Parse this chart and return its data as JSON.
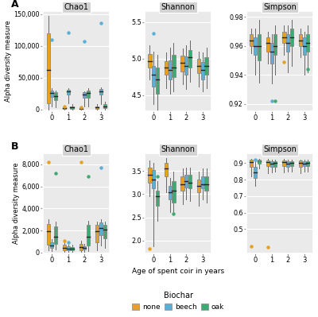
{
  "colors": {
    "none": "#E8A020",
    "beech": "#5BAFD6",
    "oak": "#3DAA72"
  },
  "panel_A": {
    "Chao1": {
      "none": {
        "0": {
          "q1": 10000,
          "median": 62000,
          "q3": 120000,
          "whislo": 0,
          "whishi": 148000,
          "fliers": []
        },
        "1": {
          "q1": 500,
          "median": 2000,
          "q3": 4000,
          "whislo": 0,
          "whishi": 5000,
          "fliers": [
            4500
          ]
        },
        "2": {
          "q1": 500,
          "median": 1500,
          "q3": 3500,
          "whislo": 0,
          "whishi": 5000,
          "fliers": [
            3000
          ]
        },
        "3": {
          "q1": 1000,
          "median": 3000,
          "q3": 5000,
          "whislo": 0,
          "whishi": 8000,
          "fliers": []
        }
      },
      "beech": {
        "0": {
          "q1": 20000,
          "median": 26000,
          "q3": 30000,
          "whislo": 5000,
          "whishi": 33000,
          "fliers": [
            110000
          ]
        },
        "1": {
          "q1": 24000,
          "median": 29000,
          "q3": 31000,
          "whislo": 10000,
          "whishi": 33000,
          "fliers": [
            121000
          ]
        },
        "2": {
          "q1": 19000,
          "median": 24000,
          "q3": 27000,
          "whislo": 5000,
          "whishi": 29000,
          "fliers": [
            107000
          ]
        },
        "3": {
          "q1": 23000,
          "median": 29000,
          "q3": 32000,
          "whislo": 8000,
          "whishi": 35000,
          "fliers": [
            136000
          ]
        }
      },
      "oak": {
        "0": {
          "q1": 15000,
          "median": 21000,
          "q3": 27000,
          "whislo": 3000,
          "whishi": 30000,
          "fliers": []
        },
        "1": {
          "q1": 1000,
          "median": 3000,
          "q3": 5000,
          "whislo": 0,
          "whishi": 8000,
          "fliers": []
        },
        "2": {
          "q1": 19000,
          "median": 26000,
          "q3": 30000,
          "whislo": 5000,
          "whishi": 33000,
          "fliers": []
        },
        "3": {
          "q1": 2000,
          "median": 5000,
          "q3": 8000,
          "whislo": 0,
          "whishi": 12000,
          "fliers": []
        }
      }
    },
    "Shannon": {
      "none": {
        "0": {
          "q1": 4.88,
          "median": 4.97,
          "q3": 5.06,
          "whislo": 4.72,
          "whishi": 5.18,
          "fliers": []
        },
        "1": {
          "q1": 4.78,
          "median": 4.88,
          "q3": 4.97,
          "whislo": 4.6,
          "whishi": 5.08,
          "fliers": []
        },
        "2": {
          "q1": 4.82,
          "median": 4.94,
          "q3": 5.04,
          "whislo": 4.65,
          "whishi": 5.14,
          "fliers": []
        },
        "3": {
          "q1": 4.8,
          "median": 4.9,
          "q3": 5.0,
          "whislo": 4.62,
          "whishi": 5.1,
          "fliers": []
        }
      },
      "beech": {
        "0": {
          "q1": 4.62,
          "median": 4.78,
          "q3": 4.9,
          "whislo": 4.38,
          "whishi": 5.1,
          "fliers": [
            5.35
          ]
        },
        "1": {
          "q1": 4.72,
          "median": 4.85,
          "q3": 4.98,
          "whislo": 4.52,
          "whishi": 5.15,
          "fliers": []
        },
        "2": {
          "q1": 4.78,
          "median": 4.9,
          "q3": 5.03,
          "whislo": 4.58,
          "whishi": 5.18,
          "fliers": []
        },
        "3": {
          "q1": 4.72,
          "median": 4.85,
          "q3": 4.95,
          "whislo": 4.55,
          "whishi": 5.08,
          "fliers": []
        }
      },
      "oak": {
        "0": {
          "q1": 4.52,
          "median": 4.72,
          "q3": 4.88,
          "whislo": 4.28,
          "whishi": 5.05,
          "fliers": []
        },
        "1": {
          "q1": 4.75,
          "median": 4.88,
          "q3": 5.05,
          "whislo": 4.55,
          "whishi": 5.22,
          "fliers": []
        },
        "2": {
          "q1": 4.88,
          "median": 5.02,
          "q3": 5.12,
          "whislo": 4.68,
          "whishi": 5.25,
          "fliers": []
        },
        "3": {
          "q1": 4.78,
          "median": 4.9,
          "q3": 5.02,
          "whislo": 4.6,
          "whishi": 5.15,
          "fliers": []
        }
      }
    },
    "Simpson": {
      "none": {
        "0": {
          "q1": 0.96,
          "median": 0.964,
          "q3": 0.968,
          "whislo": 0.955,
          "whishi": 0.972,
          "fliers": []
        },
        "1": {
          "q1": 0.956,
          "median": 0.962,
          "q3": 0.966,
          "whislo": 0.948,
          "whishi": 0.97,
          "fliers": []
        },
        "2": {
          "q1": 0.962,
          "median": 0.966,
          "q3": 0.97,
          "whislo": 0.954,
          "whishi": 0.974,
          "fliers": [
            0.949
          ]
        },
        "3": {
          "q1": 0.96,
          "median": 0.964,
          "q3": 0.968,
          "whislo": 0.952,
          "whishi": 0.972,
          "fliers": []
        }
      },
      "beech": {
        "0": {
          "q1": 0.954,
          "median": 0.96,
          "q3": 0.966,
          "whislo": 0.94,
          "whishi": 0.972,
          "fliers": []
        },
        "1": {
          "q1": 0.948,
          "median": 0.956,
          "q3": 0.962,
          "whislo": 0.934,
          "whishi": 0.968,
          "fliers": [
            0.922
          ]
        },
        "2": {
          "q1": 0.956,
          "median": 0.962,
          "q3": 0.968,
          "whislo": 0.942,
          "whishi": 0.974,
          "fliers": []
        },
        "3": {
          "q1": 0.954,
          "median": 0.96,
          "q3": 0.966,
          "whislo": 0.94,
          "whishi": 0.97,
          "fliers": []
        }
      },
      "oak": {
        "0": {
          "q1": 0.95,
          "median": 0.96,
          "q3": 0.968,
          "whislo": 0.935,
          "whishi": 0.978,
          "fliers": []
        },
        "1": {
          "q1": 0.954,
          "median": 0.96,
          "q3": 0.968,
          "whislo": 0.94,
          "whishi": 0.974,
          "fliers": [
            0.922
          ]
        },
        "2": {
          "q1": 0.96,
          "median": 0.966,
          "q3": 0.972,
          "whislo": 0.946,
          "whishi": 0.978,
          "fliers": []
        },
        "3": {
          "q1": 0.956,
          "median": 0.962,
          "q3": 0.968,
          "whislo": 0.942,
          "whishi": 0.974,
          "fliers": [
            0.944
          ]
        }
      }
    }
  },
  "panel_B": {
    "Chao1": {
      "none": {
        "0": {
          "q1": 700,
          "median": 1900,
          "q3": 2600,
          "whislo": 200,
          "whishi": 3000,
          "fliers": [
            8200
          ]
        },
        "1": {
          "q1": 200,
          "median": 400,
          "q3": 700,
          "whislo": 80,
          "whishi": 1000,
          "fliers": [
            1050
          ]
        },
        "2": {
          "q1": 200,
          "median": 500,
          "q3": 800,
          "whislo": 80,
          "whishi": 1100,
          "fliers": [
            8200
          ]
        },
        "3": {
          "q1": 900,
          "median": 1900,
          "q3": 2500,
          "whislo": 200,
          "whishi": 2800,
          "fliers": []
        }
      },
      "beech": {
        "0": {
          "q1": 400,
          "median": 600,
          "q3": 900,
          "whislo": 150,
          "whishi": 1200,
          "fliers": []
        },
        "1": {
          "q1": 200,
          "median": 380,
          "q3": 550,
          "whislo": 80,
          "whishi": 700,
          "fliers": [
            900
          ]
        },
        "2": {
          "q1": 250,
          "median": 400,
          "q3": 580,
          "whislo": 80,
          "whishi": 750,
          "fliers": []
        },
        "3": {
          "q1": 1600,
          "median": 2200,
          "q3": 2700,
          "whislo": 600,
          "whishi": 3000,
          "fliers": [
            7700
          ]
        }
      },
      "oak": {
        "0": {
          "q1": 800,
          "median": 1400,
          "q3": 2400,
          "whislo": 250,
          "whishi": 2800,
          "fliers": [
            7200
          ]
        },
        "1": {
          "q1": 200,
          "median": 350,
          "q3": 500,
          "whislo": 60,
          "whishi": 700,
          "fliers": []
        },
        "2": {
          "q1": 600,
          "median": 1400,
          "q3": 2500,
          "whislo": 150,
          "whishi": 2900,
          "fliers": [
            6900
          ]
        },
        "3": {
          "q1": 1300,
          "median": 2100,
          "q3": 2500,
          "whislo": 400,
          "whishi": 2800,
          "fliers": []
        }
      }
    },
    "Shannon": {
      "none": {
        "0": {
          "q1": 3.25,
          "median": 3.42,
          "q3": 3.58,
          "whislo": 2.95,
          "whishi": 3.72,
          "fliers": [
            1.82
          ]
        },
        "1": {
          "q1": 3.38,
          "median": 3.55,
          "q3": 3.68,
          "whislo": 3.05,
          "whishi": 3.78,
          "fliers": []
        },
        "2": {
          "q1": 3.08,
          "median": 3.22,
          "q3": 3.38,
          "whislo": 2.78,
          "whishi": 3.55,
          "fliers": []
        },
        "3": {
          "q1": 3.05,
          "median": 3.18,
          "q3": 3.32,
          "whislo": 2.75,
          "whishi": 3.48,
          "fliers": []
        }
      },
      "beech": {
        "0": {
          "q1": 3.12,
          "median": 3.32,
          "q3": 3.52,
          "whislo": 1.88,
          "whishi": 3.68,
          "fliers": []
        },
        "1": {
          "q1": 2.88,
          "median": 3.05,
          "q3": 3.18,
          "whislo": 2.62,
          "whishi": 3.35,
          "fliers": []
        },
        "2": {
          "q1": 3.15,
          "median": 3.28,
          "q3": 3.42,
          "whislo": 2.88,
          "whishi": 3.58,
          "fliers": []
        },
        "3": {
          "q1": 3.12,
          "median": 3.22,
          "q3": 3.38,
          "whislo": 2.88,
          "whishi": 3.55,
          "fliers": []
        }
      },
      "oak": {
        "0": {
          "q1": 2.75,
          "median": 2.95,
          "q3": 3.08,
          "whislo": 2.42,
          "whishi": 3.28,
          "fliers": [
            3.38
          ]
        },
        "1": {
          "q1": 2.82,
          "median": 3.08,
          "q3": 3.28,
          "whislo": 2.58,
          "whishi": 3.48,
          "fliers": [
            2.58
          ]
        },
        "2": {
          "q1": 3.12,
          "median": 3.25,
          "q3": 3.42,
          "whislo": 2.85,
          "whishi": 3.58,
          "fliers": []
        },
        "3": {
          "q1": 3.08,
          "median": 3.22,
          "q3": 3.38,
          "whislo": 2.82,
          "whishi": 3.55,
          "fliers": []
        }
      }
    },
    "Simpson": {
      "none": {
        "0": {
          "q1": 0.88,
          "median": 0.908,
          "q3": 0.92,
          "whislo": 0.82,
          "whishi": 0.928,
          "fliers": [
            0.395
          ]
        },
        "1": {
          "q1": 0.882,
          "median": 0.905,
          "q3": 0.918,
          "whislo": 0.84,
          "whishi": 0.928,
          "fliers": [
            0.388
          ]
        },
        "2": {
          "q1": 0.882,
          "median": 0.905,
          "q3": 0.918,
          "whislo": 0.842,
          "whishi": 0.926,
          "fliers": []
        },
        "3": {
          "q1": 0.88,
          "median": 0.9,
          "q3": 0.915,
          "whislo": 0.838,
          "whishi": 0.924,
          "fliers": []
        }
      },
      "beech": {
        "0": {
          "q1": 0.808,
          "median": 0.842,
          "q3": 0.88,
          "whislo": 0.762,
          "whishi": 0.912,
          "fliers": [
            0.92
          ]
        },
        "1": {
          "q1": 0.878,
          "median": 0.898,
          "q3": 0.912,
          "whislo": 0.845,
          "whishi": 0.922,
          "fliers": []
        },
        "2": {
          "q1": 0.88,
          "median": 0.898,
          "q3": 0.912,
          "whislo": 0.848,
          "whishi": 0.922,
          "fliers": []
        },
        "3": {
          "q1": 0.882,
          "median": 0.898,
          "q3": 0.912,
          "whislo": 0.848,
          "whishi": 0.92,
          "fliers": []
        }
      },
      "oak": {
        "0": {
          "q1": 0.898,
          "median": 0.91,
          "q3": 0.92,
          "whislo": 0.868,
          "whishi": 0.928,
          "fliers": [
            0.908
          ]
        },
        "1": {
          "q1": 0.88,
          "median": 0.9,
          "q3": 0.912,
          "whislo": 0.848,
          "whishi": 0.922,
          "fliers": []
        },
        "2": {
          "q1": 0.882,
          "median": 0.9,
          "q3": 0.914,
          "whislo": 0.85,
          "whishi": 0.924,
          "fliers": []
        },
        "3": {
          "q1": 0.882,
          "median": 0.9,
          "q3": 0.912,
          "whislo": 0.85,
          "whishi": 0.922,
          "fliers": []
        }
      }
    }
  },
  "A_ylims": {
    "Chao1": [
      -3000,
      155000
    ],
    "Shannon": [
      4.28,
      5.65
    ],
    "Simpson": [
      0.915,
      0.984
    ]
  },
  "B_ylims": {
    "Chao1": [
      -100,
      9000
    ],
    "Shannon": [
      1.72,
      3.88
    ],
    "Simpson": [
      0.35,
      0.96
    ]
  },
  "A_yticks": {
    "Chao1": [
      0,
      50000,
      100000,
      150000
    ],
    "Shannon": [
      4.5,
      5.0,
      5.5
    ],
    "Simpson": [
      0.92,
      0.94,
      0.96,
      0.98
    ]
  },
  "B_yticks": {
    "Chao1": [
      0,
      2000,
      4000,
      6000,
      8000
    ],
    "Shannon": [
      2.0,
      2.5,
      3.0,
      3.5
    ],
    "Simpson": [
      0.5,
      0.6,
      0.7,
      0.8,
      0.9
    ]
  },
  "panel_labels": [
    "Chao1",
    "Shannon",
    "Simpson"
  ],
  "row_labels": [
    "A",
    "B"
  ],
  "xlabel": "Age of spent coir in years",
  "ylabel": "Alpha diversity measure",
  "legend_title": "Biochar",
  "legend_labels": [
    "none",
    "beech",
    "oak"
  ],
  "bg_color": "#EAEAEA",
  "box_width": 0.2,
  "offsets": [
    -0.23,
    0.0,
    0.23
  ]
}
